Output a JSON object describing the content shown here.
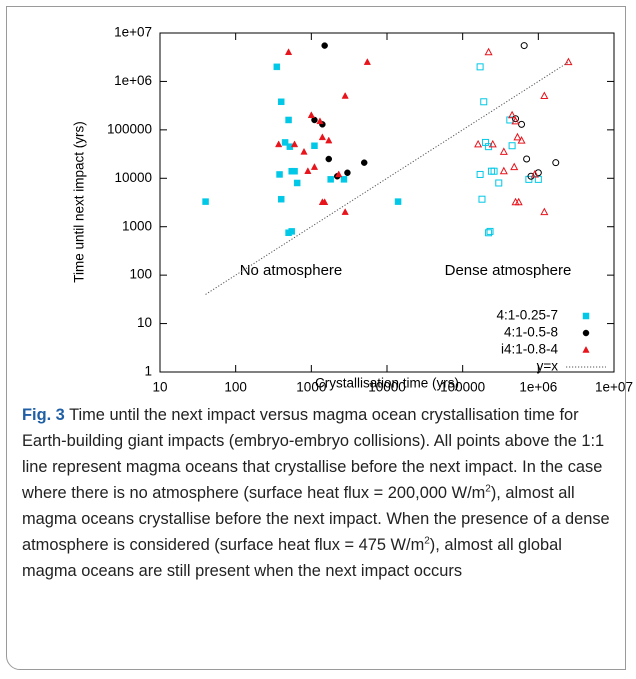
{
  "chart_data": {
    "type": "scatter",
    "xlabel": "Crystallisation time (yrs)",
    "ylabel": "Time until next impact (yrs)",
    "xscale": "log",
    "yscale": "log",
    "xlim": [
      10,
      10000000
    ],
    "ylim": [
      1,
      10000000
    ],
    "xticks": [
      10,
      100,
      1000,
      10000,
      100000,
      {
        "value": 1000000,
        "label": "1e+06"
      },
      {
        "value": 10000000,
        "label": "1e+07"
      }
    ],
    "yticks": [
      1,
      10,
      100,
      1000,
      10000,
      100000,
      {
        "value": 1000000,
        "label": "1e+06"
      },
      {
        "value": 10000000,
        "label": "1e+07"
      }
    ],
    "legend": "bottom-right",
    "annotations": [
      "No atmosphere",
      "Dense atmosphere"
    ],
    "series": [
      {
        "name": "4:1-0.25-7",
        "color": "#00c8e6",
        "marker": "square",
        "x": [
          40,
          350,
          400,
          450,
          500,
          520,
          550,
          600,
          650,
          380,
          400,
          1100,
          1800,
          2700,
          500,
          550,
          14000,
          170000,
          190000,
          200000,
          220000,
          240000,
          260000,
          300000,
          170000,
          180000,
          450000,
          750000,
          1000000,
          220000,
          230000,
          420000
        ],
        "values": [
          3300,
          2000000,
          380000,
          55000,
          160000,
          45000,
          14000,
          14000,
          8000,
          12000,
          3700,
          47000,
          9500,
          9500,
          750,
          800,
          3300,
          2000000,
          380000,
          55000,
          45000,
          14000,
          14000,
          8000,
          12000,
          3700,
          47000,
          9500,
          9500,
          750,
          800,
          160000
        ],
        "hollow": [
          false,
          false,
          false,
          false,
          false,
          false,
          false,
          false,
          false,
          false,
          false,
          false,
          false,
          false,
          false,
          false,
          false,
          true,
          true,
          true,
          true,
          true,
          true,
          true,
          true,
          true,
          true,
          true,
          true,
          true,
          true,
          true
        ]
      },
      {
        "name": "4:1-0.5-8",
        "color": "#000000",
        "marker": "circle",
        "x": [
          1500,
          1100,
          1400,
          1700,
          2200,
          3000,
          5000,
          650000,
          500000,
          600000,
          700000,
          800000,
          1000000,
          1700000
        ],
        "values": [
          5500000,
          160000,
          130000,
          25000,
          11000,
          13000,
          21000,
          5500000,
          170000,
          130000,
          25000,
          11000,
          13000,
          21000
        ],
        "hollow": [
          false,
          false,
          false,
          false,
          false,
          false,
          false,
          true,
          true,
          true,
          true,
          true,
          true,
          true
        ]
      },
      {
        "name": "i4:1-0.8-4",
        "color": "#e8141c",
        "marker": "triangle",
        "x": [
          500,
          5500,
          2800,
          1000,
          1300,
          800,
          370,
          900,
          1400,
          1700,
          1100,
          1400,
          1500,
          2800,
          2300,
          600,
          220000,
          2500000,
          1200000,
          450000,
          500000,
          350000,
          160000,
          350000,
          530000,
          600000,
          480000,
          500000,
          550000,
          1200000,
          900000,
          250000
        ],
        "values": [
          4000000,
          2500000,
          500000,
          200000,
          150000,
          35000,
          50000,
          14000,
          70000,
          60000,
          17000,
          3200,
          3200,
          2000,
          12000,
          50000,
          4000000,
          2500000,
          500000,
          200000,
          150000,
          35000,
          50000,
          14000,
          70000,
          60000,
          17000,
          3200,
          3200,
          2000,
          12000,
          50000
        ],
        "hollow": [
          false,
          false,
          false,
          false,
          false,
          false,
          false,
          false,
          false,
          false,
          false,
          false,
          false,
          false,
          false,
          false,
          true,
          true,
          true,
          true,
          true,
          true,
          true,
          true,
          true,
          true,
          true,
          true,
          true,
          true,
          true,
          true
        ]
      },
      {
        "name": "y=x",
        "color": "#555555",
        "marker": "dotted-line",
        "x": [
          40,
          2500000
        ],
        "values": [
          40,
          2500000
        ]
      }
    ]
  },
  "caption": {
    "label": "Fig. 3",
    "text": [
      "Time until the next impact versus magma ocean crystallisation time for Earth-building giant impacts (embryo-embryo collisions). All points above the 1:1 line represent magma oceans that crystallise before the next impact. In the case where there is no atmosphere (surface heat flux = 200,000 W/m",
      "2",
      "), almost all magma oceans crystallise before the next impact. When the presence of a dense atmosphere is considered (surface heat flux = 475 W/m",
      "2",
      "), almost all global magma oceans are still present when the next impact occurs"
    ]
  }
}
